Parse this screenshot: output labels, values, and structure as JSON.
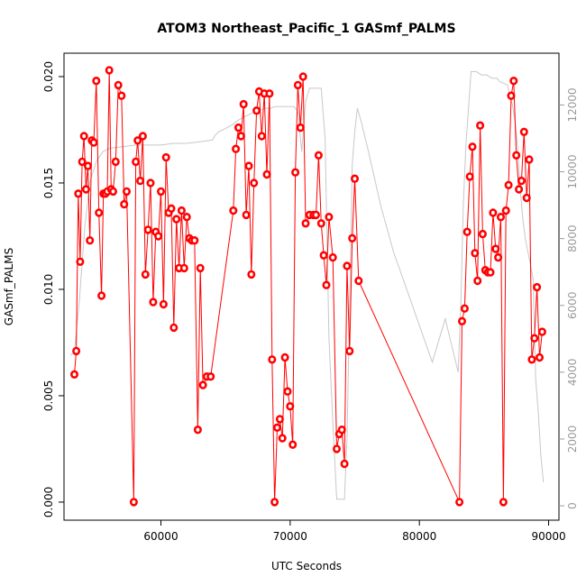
{
  "chart_data": {
    "type": "line",
    "title": "ATOM3 Northeast_Pacific_1 GASmf_PALMS",
    "xlabel": "UTC Seconds",
    "ylabel": "GASmf_PALMS",
    "xlim": [
      52500,
      90800
    ],
    "ylim": [
      -0.00085,
      0.0211
    ],
    "y2lim": [
      -430,
      13550
    ],
    "x_ticks": [
      60000,
      70000,
      80000,
      90000
    ],
    "x_tick_labels": [
      "60000",
      "70000",
      "80000",
      "90000"
    ],
    "y_ticks": [
      0.0,
      0.005,
      0.01,
      0.015,
      0.02
    ],
    "y_tick_labels": [
      "0.000",
      "0.005",
      "0.010",
      "0.015",
      "0.020"
    ],
    "y2_ticks": [
      0,
      2000,
      4000,
      6000,
      8000,
      10000,
      12000
    ],
    "y2_tick_labels": [
      "0",
      "2000",
      "4000",
      "6000",
      "8000",
      "10000",
      "12000"
    ],
    "grid": false,
    "colors": {
      "series": "#ff0000",
      "points": "#ff0000",
      "altitude": "#c8c8c8",
      "right_axis": "#9a9a9a"
    },
    "series": [
      {
        "values_x": [
          53300,
          53450,
          53600,
          53750,
          53900,
          54050,
          54200,
          54350,
          54500,
          54650,
          54800,
          55000,
          55200,
          55400,
          55550,
          55700,
          55850,
          56000,
          56150,
          56300,
          56500,
          56700,
          56950,
          57150,
          57350,
          57900,
          58050,
          58200,
          58400,
          58600,
          58800,
          59000,
          59200,
          59400,
          59600,
          59800,
          60000,
          60200,
          60400,
          60600,
          60800,
          61000,
          61200,
          61400,
          61600,
          61800,
          62000,
          62200,
          62400,
          62600,
          62850,
          63050,
          63250,
          63550,
          63850,
          65600,
          65800,
          66000,
          66200,
          66400,
          66600,
          66800,
          67000,
          67200,
          67400,
          67600,
          67800,
          68000,
          68200,
          68400,
          68600,
          68800,
          69000,
          69200,
          69400,
          69600,
          69800,
          70000,
          70200,
          70400,
          70600,
          70800,
          71000,
          71200,
          71500,
          71800,
          72000,
          72200,
          72400,
          72600,
          72800,
          73000,
          73300,
          73600,
          73800,
          74000,
          74200,
          74400,
          74600,
          74800,
          75000,
          75300,
          83100,
          83300,
          83500,
          83700,
          83900,
          84100,
          84300,
          84500,
          84700,
          84900,
          85100,
          85300,
          85500,
          85700,
          85900,
          86100,
          86300,
          86500,
          86700,
          86900,
          87100,
          87300,
          87500,
          87700,
          87900,
          88100,
          88300,
          88500,
          88700,
          88900,
          89100,
          89300,
          89500
        ],
        "values_y": [
          0.006,
          0.0071,
          0.0145,
          0.0113,
          0.016,
          0.0172,
          0.0147,
          0.0158,
          0.0123,
          0.017,
          0.0169,
          0.0198,
          0.0136,
          0.0097,
          0.0145,
          0.0145,
          0.0146,
          0.0203,
          0.0147,
          0.0146,
          0.016,
          0.0196,
          0.0191,
          0.014,
          0.0146,
          0.0,
          0.016,
          0.017,
          0.0151,
          0.0172,
          0.0107,
          0.0128,
          0.015,
          0.0094,
          0.0127,
          0.0125,
          0.0146,
          0.0093,
          0.0162,
          0.0136,
          0.0138,
          0.0082,
          0.0133,
          0.011,
          0.0137,
          0.011,
          0.0134,
          0.0124,
          0.0123,
          0.0123,
          0.0034,
          0.011,
          0.0055,
          0.0059,
          0.0059,
          0.0137,
          0.0166,
          0.0176,
          0.0172,
          0.0187,
          0.0135,
          0.0158,
          0.0107,
          0.015,
          0.0184,
          0.0193,
          0.0172,
          0.0192,
          0.0154,
          0.0192,
          0.0067,
          0.0,
          0.0035,
          0.0039,
          0.003,
          0.0068,
          0.0052,
          0.0045,
          0.0027,
          0.0155,
          0.0196,
          0.0176,
          0.02,
          0.0131,
          0.0135,
          0.0135,
          0.0135,
          0.0163,
          0.0131,
          0.0116,
          0.0102,
          0.0134,
          0.0115,
          0.0025,
          0.0032,
          0.0034,
          0.0018,
          0.0111,
          0.0071,
          0.0124,
          0.0152,
          0.0104,
          0.0,
          0.0085,
          0.0091,
          0.0127,
          0.0153,
          0.0167,
          0.0117,
          0.0104,
          0.0177,
          0.0126,
          0.0109,
          0.0108,
          0.0108,
          0.0136,
          0.0119,
          0.0115,
          0.0134,
          0.0,
          0.0137,
          0.0149,
          0.0191,
          0.0198,
          0.0163,
          0.0147,
          0.0151,
          0.0174,
          0.0143,
          0.0161,
          0.0067,
          0.0077,
          0.0101,
          0.0068,
          0.008
        ]
      }
    ],
    "secondary_series": {
      "axis": "right",
      "color": "#c8c8c8",
      "x": [
        53000,
        53300,
        53700,
        54100,
        54500,
        55000,
        55500,
        56000,
        57000,
        58000,
        59000,
        60000,
        61000,
        62000,
        63000,
        64000,
        64200,
        64500,
        65000,
        65500,
        66000,
        66500,
        67000,
        67500,
        68000,
        68500,
        68800,
        69200,
        69600,
        69900,
        70100,
        70300,
        70600,
        70900,
        71200,
        71500,
        71800,
        72000,
        72400,
        72700,
        73000,
        73300,
        73600,
        73900,
        74200,
        74400,
        74600,
        74800,
        75000,
        75200,
        75500,
        76000,
        77000,
        78000,
        79000,
        80000,
        81000,
        82000,
        83000,
        83200,
        83400,
        83600,
        83800,
        84000,
        84400,
        84800,
        85200,
        85600,
        86000,
        86200,
        86500,
        86800,
        87000,
        87200,
        87400,
        87600,
        87800,
        88000,
        88200,
        88400,
        88600,
        88800,
        89000,
        89200,
        89400,
        89600
      ],
      "y": [
        4500,
        4600,
        6200,
        8300,
        9700,
        10300,
        10600,
        10700,
        10750,
        10800,
        10800,
        10800,
        10850,
        10850,
        10900,
        10950,
        11100,
        11200,
        11300,
        11400,
        11550,
        11650,
        11750,
        11800,
        11900,
        11900,
        11950,
        11950,
        11950,
        11950,
        11950,
        11950,
        11800,
        10600,
        12100,
        12500,
        12500,
        12500,
        12500,
        11000,
        5000,
        2500,
        200,
        200,
        200,
        2000,
        6000,
        10200,
        11200,
        11900,
        11500,
        10700,
        9000,
        7600,
        6500,
        5400,
        4300,
        5600,
        4000,
        6000,
        9000,
        10800,
        11900,
        13000,
        13000,
        12900,
        12900,
        12800,
        12800,
        12700,
        12650,
        12600,
        12300,
        12000,
        11500,
        10800,
        9500,
        8600,
        8000,
        7600,
        7200,
        6800,
        3800,
        2800,
        1500,
        700
      ]
    }
  }
}
